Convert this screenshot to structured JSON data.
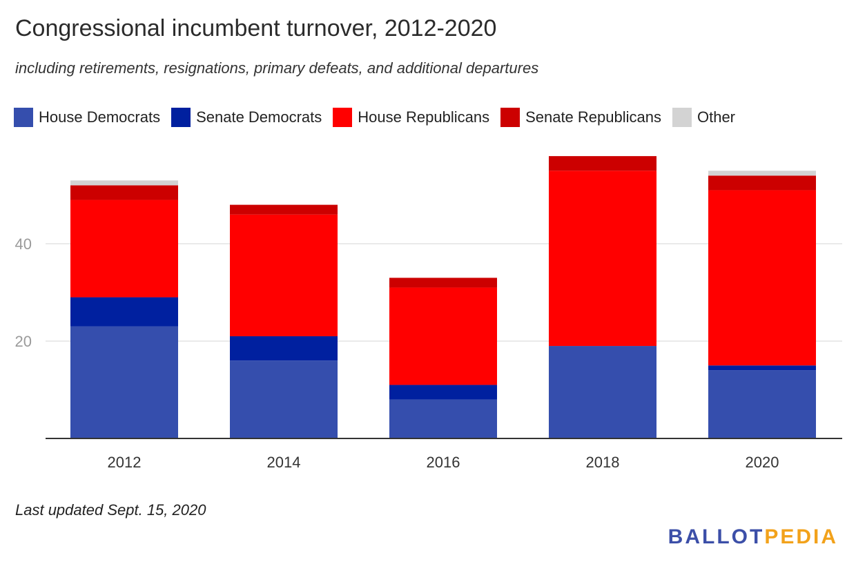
{
  "header": {
    "title": "Congressional incumbent turnover, 2012-2020",
    "subtitle": "including retirements, resignations, primary defeats, and additional departures"
  },
  "legend": {
    "items": [
      {
        "label": "House Democrats",
        "color": "#354ead"
      },
      {
        "label": "Senate Democrats",
        "color": "#00209f"
      },
      {
        "label": "House Republicans",
        "color": "#ff0000"
      },
      {
        "label": "Senate Republicans",
        "color": "#cc0000"
      },
      {
        "label": "Other",
        "color": "#d3d3d3"
      }
    ]
  },
  "chart_data": {
    "type": "bar",
    "stacked": true,
    "categories": [
      "2012",
      "2014",
      "2016",
      "2018",
      "2020"
    ],
    "series": [
      {
        "name": "House Democrats",
        "color": "#354ead",
        "values": [
          23,
          16,
          8,
          19,
          14
        ]
      },
      {
        "name": "Senate Democrats",
        "color": "#00209f",
        "values": [
          6,
          5,
          3,
          0,
          1
        ]
      },
      {
        "name": "House Republicans",
        "color": "#ff0000",
        "values": [
          20,
          25,
          20,
          36,
          36
        ]
      },
      {
        "name": "Senate Republicans",
        "color": "#cc0000",
        "values": [
          3,
          2,
          2,
          3,
          3
        ]
      },
      {
        "name": "Other",
        "color": "#d3d3d3",
        "values": [
          1,
          0,
          0,
          0,
          1
        ]
      }
    ],
    "ylim": [
      0,
      60
    ],
    "yticks": [
      20,
      40
    ],
    "grid": true,
    "legend_position": "top"
  },
  "footer": {
    "note": "Last updated Sept. 15, 2020",
    "logo_part1": "BALLOT",
    "logo_part2": "PEDIA"
  }
}
